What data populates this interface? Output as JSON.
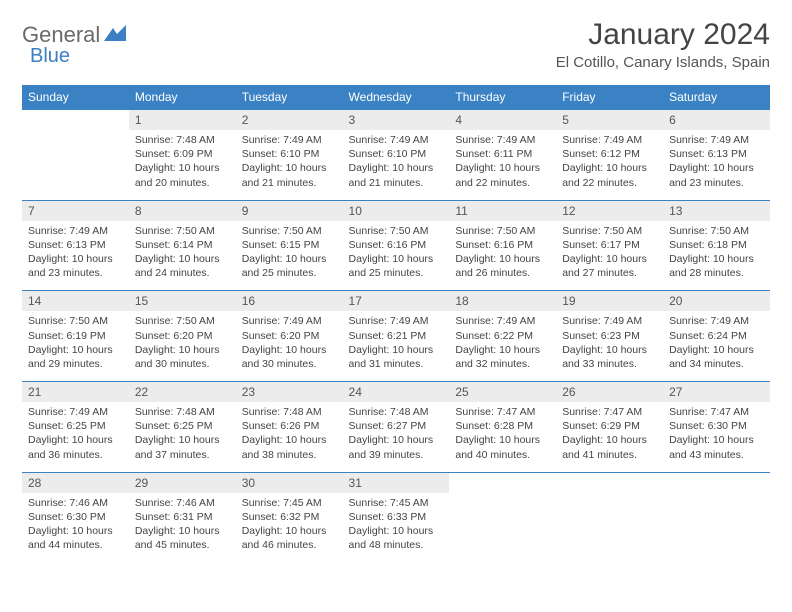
{
  "logo": {
    "text1": "General",
    "text2": "Blue",
    "shape_color": "#3b7fc4"
  },
  "title": "January 2024",
  "location": "El Cotillo, Canary Islands, Spain",
  "colors": {
    "header_bg": "#3b82c4",
    "header_text": "#ffffff",
    "daynum_bg": "#ececec",
    "border": "#3b82c4",
    "body_text": "#444444"
  },
  "dow": [
    "Sunday",
    "Monday",
    "Tuesday",
    "Wednesday",
    "Thursday",
    "Friday",
    "Saturday"
  ],
  "weeks": [
    {
      "nums": [
        "",
        "1",
        "2",
        "3",
        "4",
        "5",
        "6"
      ],
      "cells": [
        null,
        {
          "sunrise": "Sunrise: 7:48 AM",
          "sunset": "Sunset: 6:09 PM",
          "day1": "Daylight: 10 hours",
          "day2": "and 20 minutes."
        },
        {
          "sunrise": "Sunrise: 7:49 AM",
          "sunset": "Sunset: 6:10 PM",
          "day1": "Daylight: 10 hours",
          "day2": "and 21 minutes."
        },
        {
          "sunrise": "Sunrise: 7:49 AM",
          "sunset": "Sunset: 6:10 PM",
          "day1": "Daylight: 10 hours",
          "day2": "and 21 minutes."
        },
        {
          "sunrise": "Sunrise: 7:49 AM",
          "sunset": "Sunset: 6:11 PM",
          "day1": "Daylight: 10 hours",
          "day2": "and 22 minutes."
        },
        {
          "sunrise": "Sunrise: 7:49 AM",
          "sunset": "Sunset: 6:12 PM",
          "day1": "Daylight: 10 hours",
          "day2": "and 22 minutes."
        },
        {
          "sunrise": "Sunrise: 7:49 AM",
          "sunset": "Sunset: 6:13 PM",
          "day1": "Daylight: 10 hours",
          "day2": "and 23 minutes."
        }
      ]
    },
    {
      "nums": [
        "7",
        "8",
        "9",
        "10",
        "11",
        "12",
        "13"
      ],
      "cells": [
        {
          "sunrise": "Sunrise: 7:49 AM",
          "sunset": "Sunset: 6:13 PM",
          "day1": "Daylight: 10 hours",
          "day2": "and 23 minutes."
        },
        {
          "sunrise": "Sunrise: 7:50 AM",
          "sunset": "Sunset: 6:14 PM",
          "day1": "Daylight: 10 hours",
          "day2": "and 24 minutes."
        },
        {
          "sunrise": "Sunrise: 7:50 AM",
          "sunset": "Sunset: 6:15 PM",
          "day1": "Daylight: 10 hours",
          "day2": "and 25 minutes."
        },
        {
          "sunrise": "Sunrise: 7:50 AM",
          "sunset": "Sunset: 6:16 PM",
          "day1": "Daylight: 10 hours",
          "day2": "and 25 minutes."
        },
        {
          "sunrise": "Sunrise: 7:50 AM",
          "sunset": "Sunset: 6:16 PM",
          "day1": "Daylight: 10 hours",
          "day2": "and 26 minutes."
        },
        {
          "sunrise": "Sunrise: 7:50 AM",
          "sunset": "Sunset: 6:17 PM",
          "day1": "Daylight: 10 hours",
          "day2": "and 27 minutes."
        },
        {
          "sunrise": "Sunrise: 7:50 AM",
          "sunset": "Sunset: 6:18 PM",
          "day1": "Daylight: 10 hours",
          "day2": "and 28 minutes."
        }
      ]
    },
    {
      "nums": [
        "14",
        "15",
        "16",
        "17",
        "18",
        "19",
        "20"
      ],
      "cells": [
        {
          "sunrise": "Sunrise: 7:50 AM",
          "sunset": "Sunset: 6:19 PM",
          "day1": "Daylight: 10 hours",
          "day2": "and 29 minutes."
        },
        {
          "sunrise": "Sunrise: 7:50 AM",
          "sunset": "Sunset: 6:20 PM",
          "day1": "Daylight: 10 hours",
          "day2": "and 30 minutes."
        },
        {
          "sunrise": "Sunrise: 7:49 AM",
          "sunset": "Sunset: 6:20 PM",
          "day1": "Daylight: 10 hours",
          "day2": "and 30 minutes."
        },
        {
          "sunrise": "Sunrise: 7:49 AM",
          "sunset": "Sunset: 6:21 PM",
          "day1": "Daylight: 10 hours",
          "day2": "and 31 minutes."
        },
        {
          "sunrise": "Sunrise: 7:49 AM",
          "sunset": "Sunset: 6:22 PM",
          "day1": "Daylight: 10 hours",
          "day2": "and 32 minutes."
        },
        {
          "sunrise": "Sunrise: 7:49 AM",
          "sunset": "Sunset: 6:23 PM",
          "day1": "Daylight: 10 hours",
          "day2": "and 33 minutes."
        },
        {
          "sunrise": "Sunrise: 7:49 AM",
          "sunset": "Sunset: 6:24 PM",
          "day1": "Daylight: 10 hours",
          "day2": "and 34 minutes."
        }
      ]
    },
    {
      "nums": [
        "21",
        "22",
        "23",
        "24",
        "25",
        "26",
        "27"
      ],
      "cells": [
        {
          "sunrise": "Sunrise: 7:49 AM",
          "sunset": "Sunset: 6:25 PM",
          "day1": "Daylight: 10 hours",
          "day2": "and 36 minutes."
        },
        {
          "sunrise": "Sunrise: 7:48 AM",
          "sunset": "Sunset: 6:25 PM",
          "day1": "Daylight: 10 hours",
          "day2": "and 37 minutes."
        },
        {
          "sunrise": "Sunrise: 7:48 AM",
          "sunset": "Sunset: 6:26 PM",
          "day1": "Daylight: 10 hours",
          "day2": "and 38 minutes."
        },
        {
          "sunrise": "Sunrise: 7:48 AM",
          "sunset": "Sunset: 6:27 PM",
          "day1": "Daylight: 10 hours",
          "day2": "and 39 minutes."
        },
        {
          "sunrise": "Sunrise: 7:47 AM",
          "sunset": "Sunset: 6:28 PM",
          "day1": "Daylight: 10 hours",
          "day2": "and 40 minutes."
        },
        {
          "sunrise": "Sunrise: 7:47 AM",
          "sunset": "Sunset: 6:29 PM",
          "day1": "Daylight: 10 hours",
          "day2": "and 41 minutes."
        },
        {
          "sunrise": "Sunrise: 7:47 AM",
          "sunset": "Sunset: 6:30 PM",
          "day1": "Daylight: 10 hours",
          "day2": "and 43 minutes."
        }
      ]
    },
    {
      "nums": [
        "28",
        "29",
        "30",
        "31",
        "",
        "",
        ""
      ],
      "cells": [
        {
          "sunrise": "Sunrise: 7:46 AM",
          "sunset": "Sunset: 6:30 PM",
          "day1": "Daylight: 10 hours",
          "day2": "and 44 minutes."
        },
        {
          "sunrise": "Sunrise: 7:46 AM",
          "sunset": "Sunset: 6:31 PM",
          "day1": "Daylight: 10 hours",
          "day2": "and 45 minutes."
        },
        {
          "sunrise": "Sunrise: 7:45 AM",
          "sunset": "Sunset: 6:32 PM",
          "day1": "Daylight: 10 hours",
          "day2": "and 46 minutes."
        },
        {
          "sunrise": "Sunrise: 7:45 AM",
          "sunset": "Sunset: 6:33 PM",
          "day1": "Daylight: 10 hours",
          "day2": "and 48 minutes."
        },
        null,
        null,
        null
      ]
    }
  ]
}
